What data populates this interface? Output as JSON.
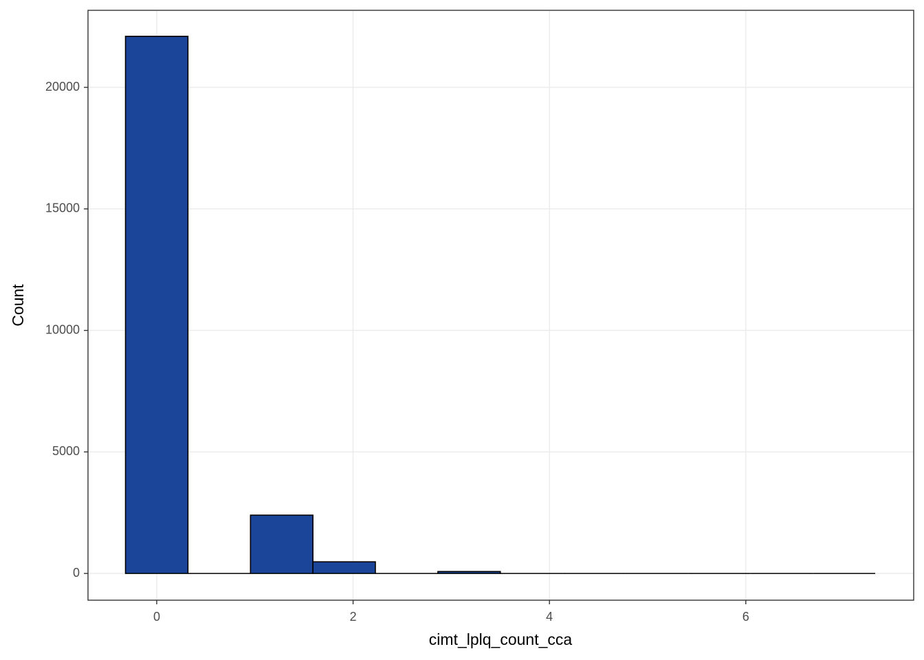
{
  "chart_data": {
    "type": "histogram",
    "x_label": "cimt_lplq_count_cca",
    "y_label": "Count",
    "bins": [
      -0.318,
      0.318,
      0.955,
      1.591,
      2.227,
      2.864,
      3.5,
      4.136,
      4.773,
      5.409,
      6.045,
      6.682,
      7.318
    ],
    "counts": [
      22100,
      0,
      2400,
      480,
      0,
      80,
      0,
      0,
      0,
      0,
      0,
      0
    ],
    "color": "#1a4599",
    "edge_color": "#000000",
    "xlim": [
      -0.7,
      7.71
    ],
    "xticks": [
      0,
      2,
      4,
      6
    ],
    "ylim": [
      -1100,
      23170
    ],
    "yticks": [
      0,
      5000,
      10000,
      15000,
      20000
    ],
    "grid": true
  }
}
